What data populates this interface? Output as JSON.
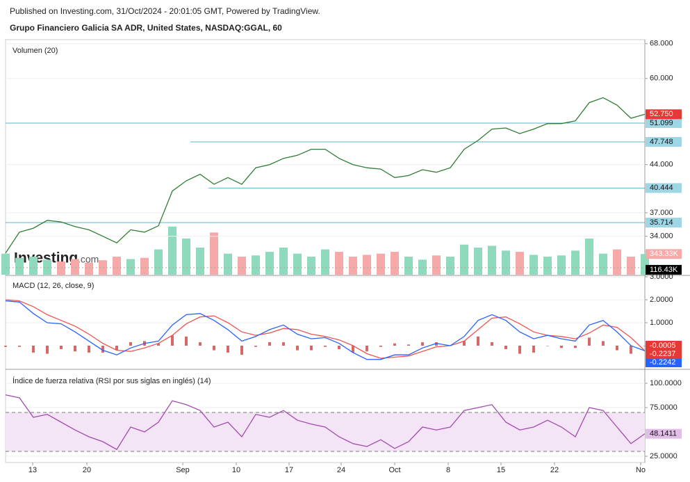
{
  "header": {
    "published": "Published on Investing.com, 31/Oct/2024 - 20:01:05 GMT, Powered by TradingView.",
    "instrument": "Grupo Financiero Galicia SA ADR, United States, NASDAQ:GGAL, 60",
    "watermark": "Investing",
    "watermark_suffix": ".com"
  },
  "chart_data": [
    {
      "type": "line",
      "log_scale": true,
      "color": "#2e7d32",
      "values": [
        32,
        34.5,
        35,
        36,
        35.8,
        35.2,
        34.8,
        34,
        33.2,
        34.8,
        34.5,
        35.3,
        40,
        41.5,
        42.5,
        41,
        42,
        41,
        43.5,
        44,
        45,
        45.5,
        46.5,
        46.5,
        45,
        44,
        43.5,
        43.3,
        42,
        42.3,
        43.2,
        42.8,
        43.5,
        46.5,
        48,
        50,
        50.2,
        49.2,
        50,
        51,
        51,
        51.5,
        55,
        56,
        54.5,
        52,
        52.75
      ],
      "value_labels": [
        null,
        null,
        null,
        null,
        null,
        null,
        null,
        null,
        null,
        null,
        null,
        null,
        null,
        null,
        null,
        null,
        null,
        null,
        null,
        null,
        null,
        null,
        null,
        null,
        null,
        null,
        null,
        null,
        null,
        null,
        null,
        null,
        null,
        null,
        null,
        null,
        null,
        null,
        null,
        null,
        null,
        null,
        null,
        null,
        null,
        null,
        "52.750"
      ],
      "ylim": [
        29.6,
        69.0
      ],
      "yticks": [
        {
          "value": 68,
          "label": "68.000"
        },
        {
          "value": 60,
          "label": "60.000"
        },
        {
          "value": 44,
          "label": "44.000"
        },
        {
          "value": 37,
          "label": "37.000"
        },
        {
          "value": 34,
          "label": "34.000"
        }
      ],
      "levels": [
        {
          "value": 51.099,
          "label": "51.099"
        },
        {
          "value": 47.748,
          "label": "47.748"
        },
        {
          "value": 40.444,
          "label": "40.444"
        },
        {
          "value": 35.714,
          "label": "35.714"
        }
      ],
      "grid": true
    },
    {
      "type": "bar",
      "title": "Volumen (20)",
      "up_color": "#8fd9bd",
      "down_color": "#f5a9a9",
      "values": [
        350,
        280,
        300,
        250,
        220,
        260,
        200,
        240,
        300,
        260,
        280,
        420,
        800,
        600,
        450,
        700,
        350,
        300,
        320,
        380,
        450,
        350,
        300,
        420,
        380,
        300,
        330,
        350,
        380,
        300,
        250,
        320,
        300,
        500,
        450,
        480,
        400,
        380,
        330,
        300,
        320,
        400,
        600,
        350,
        420,
        300,
        343.33
      ],
      "value_labels": [
        null,
        null,
        null,
        null,
        null,
        null,
        null,
        null,
        null,
        null,
        null,
        null,
        null,
        null,
        null,
        null,
        null,
        null,
        null,
        null,
        null,
        null,
        null,
        null,
        null,
        null,
        null,
        null,
        null,
        null,
        null,
        null,
        null,
        null,
        null,
        null,
        null,
        null,
        null,
        null,
        null,
        null,
        null,
        null,
        null,
        null,
        "343.33K"
      ],
      "average": {
        "value": 116.43,
        "label": "116.43K"
      },
      "ylim": [
        0,
        3900
      ]
    },
    {
      "type": "macd",
      "title": "MACD (12, 26, close, 9)",
      "series": [
        {
          "name": "MACD",
          "color": "#2962ff",
          "values": [
            1.95,
            1.9,
            1.4,
            1.0,
            0.95,
            0.6,
            0.2,
            -0.2,
            -0.4,
            -0.1,
            0.1,
            0.2,
            0.9,
            1.35,
            1.4,
            1.1,
            0.7,
            0.2,
            0.4,
            0.7,
            0.9,
            0.5,
            0.3,
            0.35,
            0.1,
            -0.3,
            -0.6,
            -0.6,
            -0.4,
            -0.4,
            -0.1,
            0.1,
            0.0,
            0.4,
            1.1,
            1.35,
            1.1,
            0.6,
            0.3,
            0.45,
            0.3,
            0.2,
            0.9,
            1.1,
            0.6,
            0.0,
            -0.2242
          ],
          "value_labels": [
            null,
            null,
            null,
            null,
            null,
            null,
            null,
            null,
            null,
            null,
            null,
            null,
            null,
            null,
            null,
            null,
            null,
            null,
            null,
            null,
            null,
            null,
            null,
            null,
            null,
            null,
            null,
            null,
            null,
            null,
            null,
            null,
            null,
            null,
            null,
            null,
            null,
            null,
            null,
            null,
            null,
            null,
            null,
            null,
            null,
            null,
            "-0.2242"
          ]
        },
        {
          "name": "Signal",
          "color": "#ef5350",
          "values": [
            2.0,
            1.95,
            1.7,
            1.35,
            1.1,
            0.85,
            0.5,
            0.1,
            -0.2,
            -0.25,
            -0.1,
            0.1,
            0.45,
            0.95,
            1.25,
            1.3,
            1.0,
            0.6,
            0.45,
            0.55,
            0.75,
            0.7,
            0.5,
            0.4,
            0.25,
            0.0,
            -0.35,
            -0.55,
            -0.5,
            -0.45,
            -0.25,
            -0.05,
            0.0,
            0.2,
            0.7,
            1.2,
            1.25,
            0.95,
            0.6,
            0.45,
            0.4,
            0.3,
            0.55,
            0.9,
            0.8,
            0.35,
            -0.2237
          ],
          "value_labels": [
            null,
            null,
            null,
            null,
            null,
            null,
            null,
            null,
            null,
            null,
            null,
            null,
            null,
            null,
            null,
            null,
            null,
            null,
            null,
            null,
            null,
            null,
            null,
            null,
            null,
            null,
            null,
            null,
            null,
            null,
            null,
            null,
            null,
            null,
            null,
            null,
            null,
            null,
            null,
            null,
            null,
            null,
            null,
            null,
            null,
            null,
            "-0.2237"
          ]
        },
        {
          "name": "Histogram",
          "color": "#c62828",
          "values": [
            -0.05,
            -0.05,
            -0.3,
            -0.35,
            -0.15,
            -0.25,
            -0.3,
            -0.3,
            -0.2,
            0.15,
            0.2,
            0.1,
            0.45,
            0.4,
            0.15,
            -0.2,
            -0.3,
            -0.4,
            -0.05,
            0.15,
            0.15,
            -0.2,
            -0.2,
            -0.05,
            -0.15,
            -0.3,
            -0.25,
            -0.05,
            0.1,
            0.05,
            0.15,
            0.15,
            0,
            0.2,
            0.4,
            0.15,
            -0.15,
            -0.35,
            -0.3,
            0,
            -0.1,
            -0.1,
            0.35,
            0.2,
            -0.2,
            -0.35,
            -0.0005
          ],
          "value_labels": [
            null,
            null,
            null,
            null,
            null,
            null,
            null,
            null,
            null,
            null,
            null,
            null,
            null,
            null,
            null,
            null,
            null,
            null,
            null,
            null,
            null,
            null,
            null,
            null,
            null,
            null,
            null,
            null,
            null,
            null,
            null,
            null,
            null,
            null,
            null,
            null,
            null,
            null,
            null,
            null,
            null,
            null,
            null,
            null,
            null,
            null,
            "-0.0005"
          ]
        }
      ],
      "ylim": [
        -1,
        3.03
      ],
      "yticks": [
        {
          "value": 3,
          "label": "3.0000"
        },
        {
          "value": 2,
          "label": "2.0000"
        },
        {
          "value": 1,
          "label": "1.0000"
        }
      ],
      "grid": true
    },
    {
      "type": "line",
      "title": "Índice de fuerza relativa (RSI por sus siglas en inglés) (14)",
      "color": "#a24ab0",
      "values": [
        88,
        85,
        65,
        68,
        60,
        52,
        45,
        40,
        32,
        55,
        50,
        60,
        82,
        78,
        72,
        55,
        60,
        45,
        68,
        65,
        72,
        62,
        58,
        55,
        45,
        38,
        35,
        42,
        33,
        40,
        55,
        52,
        55,
        72,
        75,
        78,
        60,
        52,
        55,
        62,
        55,
        45,
        75,
        72,
        55,
        38,
        48.1411
      ],
      "value_labels": [
        null,
        null,
        null,
        null,
        null,
        null,
        null,
        null,
        null,
        null,
        null,
        null,
        null,
        null,
        null,
        null,
        null,
        null,
        null,
        null,
        null,
        null,
        null,
        null,
        null,
        null,
        null,
        null,
        null,
        null,
        null,
        null,
        null,
        null,
        null,
        null,
        null,
        null,
        null,
        null,
        null,
        null,
        null,
        null,
        null,
        null,
        "48.1411"
      ],
      "band": [
        30,
        70
      ],
      "ylim": [
        18.6,
        113.6
      ],
      "yticks": [
        {
          "value": 100,
          "label": "100.0000"
        },
        {
          "value": 75,
          "label": "75.0000"
        },
        {
          "value": 25,
          "label": "25.0000"
        }
      ],
      "xticks": [
        {
          "value": 1.95,
          "label": "13"
        },
        {
          "value": 5.85,
          "label": "20"
        },
        {
          "value": 12.75,
          "label": "Sep"
        },
        {
          "value": 16.6,
          "label": "10"
        },
        {
          "value": 20.4,
          "label": "17"
        },
        {
          "value": 24.15,
          "label": "24"
        },
        {
          "value": 28,
          "label": "Oct"
        },
        {
          "value": 31.85,
          "label": "8"
        },
        {
          "value": 35.65,
          "label": "15"
        },
        {
          "value": 39.5,
          "label": "22"
        },
        {
          "value": 45.7,
          "label": "No"
        }
      ],
      "grid": true
    }
  ]
}
